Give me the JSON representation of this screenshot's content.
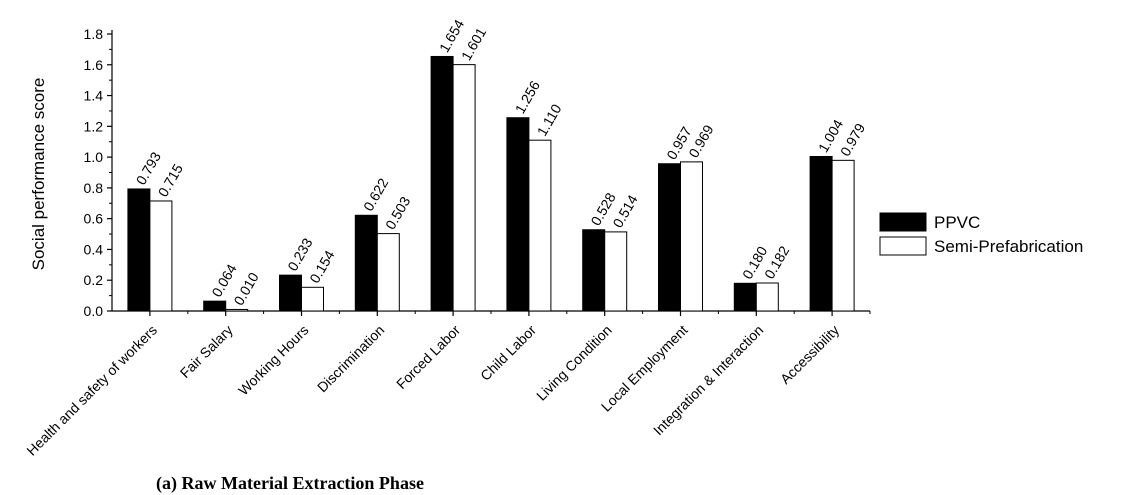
{
  "chart_data": {
    "type": "bar",
    "title": "",
    "caption": "(a) Raw Material Extraction Phase",
    "xlabel": "",
    "ylabel": "Social performance score",
    "ylim": [
      0,
      1.8
    ],
    "yticks": [
      "0.0",
      "0.2",
      "0.4",
      "0.6",
      "0.8",
      "1.0",
      "1.2",
      "1.4",
      "1.6",
      "1.8"
    ],
    "grid": false,
    "legend_position": "right",
    "categories": [
      "Health and safety of workers",
      "Fair Salary",
      "Working Hours",
      "Discrimination",
      "Forced Labor",
      "Child Labor",
      "Living Condition",
      "Local Employment",
      "Integration & Interaction",
      "Accessibility"
    ],
    "series": [
      {
        "name": "PPVC",
        "color": "#000000",
        "values": [
          0.793,
          0.064,
          0.233,
          0.622,
          1.654,
          1.256,
          0.528,
          0.957,
          0.18,
          1.004
        ],
        "labels": [
          "0.793",
          "0.064",
          "0.233",
          "0.622",
          "1.654",
          "1.256",
          "0.528",
          "0.957",
          "0.180",
          "1.004"
        ]
      },
      {
        "name": "Semi-Prefabrication",
        "color": "#ffffff",
        "values": [
          0.715,
          0.01,
          0.154,
          0.503,
          1.601,
          1.11,
          0.514,
          0.969,
          0.182,
          0.979
        ],
        "labels": [
          "0.715",
          "0.010",
          "0.154",
          "0.503",
          "1.601",
          "1.110",
          "0.514",
          "0.969",
          "0.182",
          "0.979"
        ]
      }
    ]
  }
}
